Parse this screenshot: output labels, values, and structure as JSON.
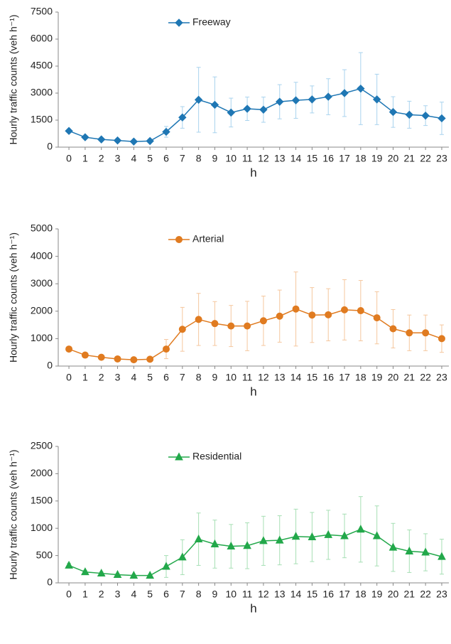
{
  "chart_data": [
    {
      "type": "line",
      "ylabel": "Hourly traffic counts (veh h⁻¹)",
      "xlabel": "h",
      "x": [
        0,
        1,
        2,
        3,
        4,
        5,
        6,
        7,
        8,
        9,
        10,
        11,
        12,
        13,
        14,
        15,
        16,
        17,
        18,
        19,
        20,
        21,
        22,
        23
      ],
      "xlim": [
        -0.66,
        23.44
      ],
      "xticks": [
        0,
        1,
        2,
        3,
        4,
        5,
        6,
        7,
        8,
        9,
        10,
        11,
        12,
        13,
        14,
        15,
        16,
        17,
        18,
        19,
        20,
        21,
        22,
        23
      ],
      "ylim": [
        0,
        7500
      ],
      "yticks": [
        0,
        1500,
        3000,
        4500,
        6000,
        7500
      ],
      "legend": "top-left",
      "series": [
        {
          "name": "Freeway",
          "color": "#1f77b4",
          "error_color": "#a9d3ee",
          "marker": "diamond",
          "values": [
            900,
            550,
            430,
            370,
            310,
            340,
            850,
            1650,
            2630,
            2350,
            1920,
            2130,
            2080,
            2520,
            2600,
            2650,
            2800,
            3000,
            3250,
            2650,
            1950,
            1800,
            1750,
            1600
          ],
          "errors": [
            100,
            80,
            70,
            60,
            60,
            70,
            300,
            600,
            1800,
            1550,
            800,
            650,
            700,
            950,
            1000,
            750,
            1000,
            1300,
            2000,
            1400,
            850,
            750,
            550,
            900
          ]
        }
      ]
    },
    {
      "type": "line",
      "ylabel": "Hourly traffic counts (veh h⁻¹)",
      "xlabel": "h",
      "x": [
        0,
        1,
        2,
        3,
        4,
        5,
        6,
        7,
        8,
        9,
        10,
        11,
        12,
        13,
        14,
        15,
        16,
        17,
        18,
        19,
        20,
        21,
        22,
        23
      ],
      "xlim": [
        -0.66,
        23.44
      ],
      "xticks": [
        0,
        1,
        2,
        3,
        4,
        5,
        6,
        7,
        8,
        9,
        10,
        11,
        12,
        13,
        14,
        15,
        16,
        17,
        18,
        19,
        20,
        21,
        22,
        23
      ],
      "ylim": [
        0,
        5000
      ],
      "yticks": [
        0,
        1000,
        2000,
        3000,
        4000,
        5000
      ],
      "legend": "top-left",
      "series": [
        {
          "name": "Arterial",
          "color": "#e07b20",
          "error_color": "#f5c79e",
          "marker": "circle",
          "values": [
            620,
            400,
            320,
            260,
            230,
            250,
            620,
            1340,
            1700,
            1550,
            1460,
            1460,
            1650,
            1820,
            2080,
            1860,
            1870,
            2050,
            2020,
            1760,
            1360,
            1210,
            1210,
            1000
          ],
          "errors": [
            60,
            50,
            40,
            30,
            30,
            30,
            350,
            800,
            950,
            800,
            750,
            900,
            900,
            950,
            1350,
            1000,
            950,
            1100,
            1100,
            950,
            700,
            650,
            650,
            500
          ]
        }
      ]
    },
    {
      "type": "line",
      "ylabel": "Hourly traffic counts (veh h⁻¹)",
      "xlabel": "h",
      "x": [
        0,
        1,
        2,
        3,
        4,
        5,
        6,
        7,
        8,
        9,
        10,
        11,
        12,
        13,
        14,
        15,
        16,
        17,
        18,
        19,
        20,
        21,
        22,
        23
      ],
      "xlim": [
        -0.66,
        23.44
      ],
      "xticks": [
        0,
        1,
        2,
        3,
        4,
        5,
        6,
        7,
        8,
        9,
        10,
        11,
        12,
        13,
        14,
        15,
        16,
        17,
        18,
        19,
        20,
        21,
        22,
        23
      ],
      "ylim": [
        0,
        2500
      ],
      "yticks": [
        0,
        500,
        1000,
        1500,
        2000,
        2500
      ],
      "legend": "top-left",
      "series": [
        {
          "name": "Residential",
          "color": "#22a84a",
          "error_color": "#a6dfb4",
          "marker": "triangle",
          "values": [
            320,
            200,
            175,
            150,
            135,
            135,
            300,
            470,
            800,
            710,
            670,
            680,
            770,
            780,
            850,
            840,
            880,
            860,
            980,
            860,
            650,
            580,
            560,
            480
          ],
          "errors": [
            40,
            30,
            25,
            20,
            20,
            20,
            200,
            320,
            480,
            440,
            400,
            420,
            450,
            450,
            500,
            450,
            450,
            400,
            600,
            550,
            440,
            390,
            340,
            320
          ]
        }
      ]
    }
  ]
}
